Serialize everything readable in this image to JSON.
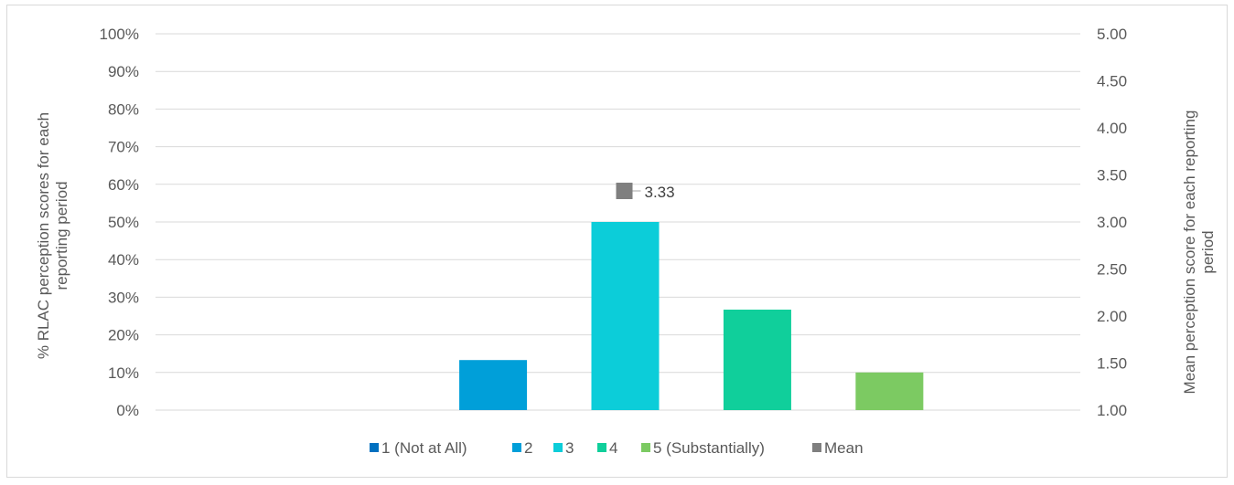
{
  "chart_data": {
    "type": "bar",
    "categories": [
      "1 (Not at All)",
      "2",
      "3",
      "4",
      "5 (Substantially)"
    ],
    "series": [
      {
        "name": "1 (Not at All)",
        "color": "#0070c0",
        "values": [
          0,
          0,
          0,
          0,
          0
        ]
      },
      {
        "name": "2",
        "color": "#009fd9",
        "values": [
          0,
          13.3,
          0,
          0,
          0
        ]
      },
      {
        "name": "3",
        "color": "#0ccdd9",
        "values": [
          0,
          0,
          50,
          0,
          0
        ]
      },
      {
        "name": "4",
        "color": "#10cf9b",
        "values": [
          0,
          0,
          0,
          26.7,
          0
        ]
      },
      {
        "name": "5 (Substantially)",
        "color": "#7cca62",
        "values": [
          0,
          0,
          0,
          0,
          10
        ]
      }
    ],
    "mean": {
      "name": "Mean",
      "value": 3.33,
      "label": "3.33",
      "color": "#7f7f7f"
    },
    "y_left": {
      "label": "% RLAC perception scores for each reporting period",
      "label_lines": [
        "% RLAC perception scores for each",
        "reporting period"
      ],
      "ylim": [
        0,
        100
      ],
      "ticks": [
        "0%",
        "10%",
        "20%",
        "30%",
        "40%",
        "50%",
        "60%",
        "70%",
        "80%",
        "90%",
        "100%"
      ]
    },
    "y_right": {
      "label": "Mean perception score for each reporting period",
      "label_lines": [
        "Mean perception score for each reporting",
        "period"
      ],
      "ylim": [
        1.0,
        5.0
      ],
      "ticks": [
        "1.00",
        "1.50",
        "2.00",
        "2.50",
        "3.00",
        "3.50",
        "4.00",
        "4.50",
        "5.00"
      ]
    },
    "legend": {
      "position": "bottom",
      "items": [
        {
          "name": "1 (Not at All)",
          "color": "#0070c0",
          "marker": "square"
        },
        {
          "name": "2",
          "color": "#009fd9",
          "marker": "square"
        },
        {
          "name": "3",
          "color": "#0ccdd9",
          "marker": "square"
        },
        {
          "name": "4",
          "color": "#10cf9b",
          "marker": "square"
        },
        {
          "name": "5 (Substantially)",
          "color": "#7cca62",
          "marker": "square"
        },
        {
          "name": "Mean",
          "color": "#7f7f7f",
          "marker": "square"
        }
      ]
    },
    "grid": true,
    "gridline_color": "#d9d9d9"
  }
}
